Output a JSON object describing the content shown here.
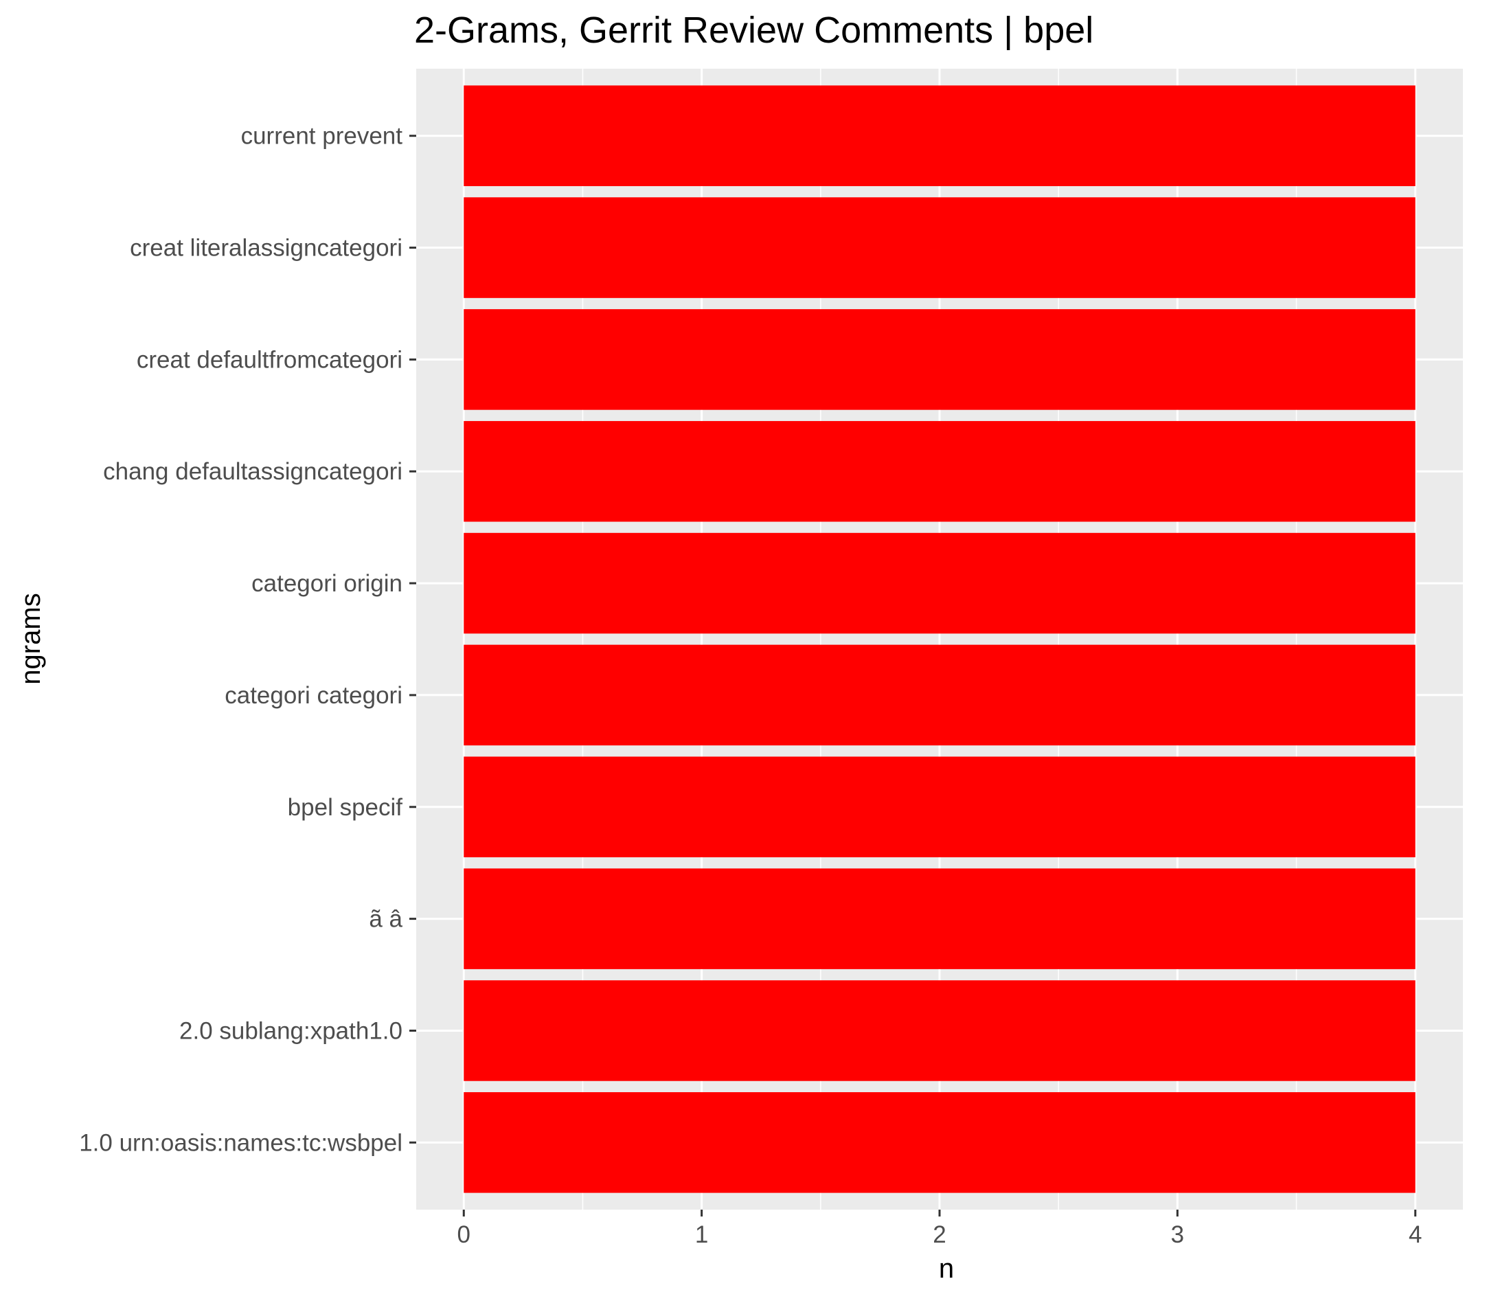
{
  "chart_data": {
    "type": "bar",
    "orientation": "horizontal",
    "title": "2-Grams, Gerrit Review Comments | bpel",
    "xlabel": "n",
    "ylabel": "ngrams",
    "categories": [
      "current prevent",
      "creat literalassigncategori",
      "creat defaultfromcategori",
      "chang defaultassigncategori",
      "categori origin",
      "categori categori",
      "bpel specif",
      "ã â",
      "2.0 sublang:xpath1.0",
      "1.0 urn:oasis:names:tc:wsbpel"
    ],
    "values": [
      4,
      4,
      4,
      4,
      4,
      4,
      4,
      4,
      4,
      4
    ],
    "xlim": [
      -0.2,
      4.2
    ],
    "x_ticks": [
      "0",
      "1",
      "2",
      "3",
      "4"
    ],
    "grid": true,
    "colors": {
      "bar": "#ff0000",
      "panel": "#ebebeb",
      "grid": "#ffffff",
      "tick_label": "#4d4d4d",
      "tick_mark": "#333333"
    }
  }
}
